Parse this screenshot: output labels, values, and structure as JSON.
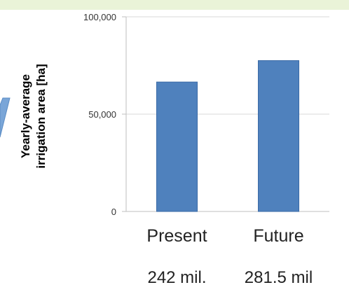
{
  "chart_data": {
    "type": "bar",
    "title": "",
    "xlabel": "",
    "ylabel": "Yearly-average irrigation area [ha]",
    "ylabel_lines": [
      "Yearly-average",
      "irrigation area [ha]"
    ],
    "categories": [
      "Present",
      "Future"
    ],
    "values": [
      66500,
      77500
    ],
    "sub_labels": [
      "242 mil.",
      "281.5 mil"
    ],
    "ylim": [
      0,
      100000
    ],
    "yticks": [
      0,
      50000,
      100000
    ],
    "ytick_labels": [
      "0",
      "50,000",
      "100,000"
    ],
    "grid": true,
    "legend": "none",
    "colors": {
      "bar": "#4f81bd",
      "bar_edge": "#3a6aa6",
      "grid": "#d9d9d9",
      "axis": "#bfbfbf",
      "top_band": "#eaf3d8",
      "arrow": "#7aa6d8"
    }
  }
}
